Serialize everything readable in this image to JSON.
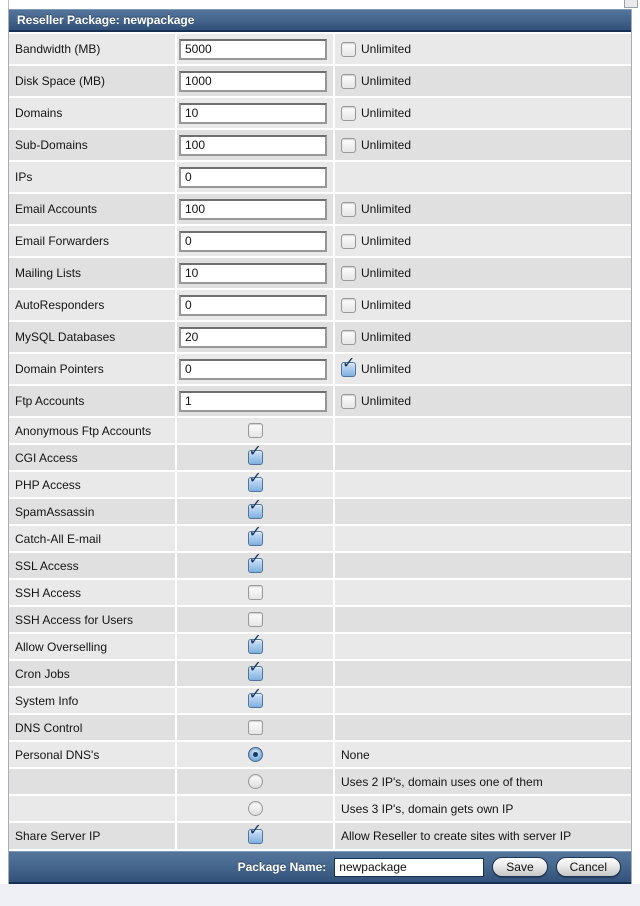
{
  "title_bar": {
    "title": "Reseller Package: newpackage"
  },
  "labels": {
    "unlimited": "Unlimited"
  },
  "limit_rows": [
    {
      "label": "Bandwidth (MB)",
      "value": "5000",
      "has_unlimited": true,
      "unlimited_checked": false
    },
    {
      "label": "Disk Space (MB)",
      "value": "1000",
      "has_unlimited": true,
      "unlimited_checked": false
    },
    {
      "label": "Domains",
      "value": "10",
      "has_unlimited": true,
      "unlimited_checked": false
    },
    {
      "label": "Sub-Domains",
      "value": "100",
      "has_unlimited": true,
      "unlimited_checked": false
    },
    {
      "label": "IPs",
      "value": "0",
      "has_unlimited": false,
      "unlimited_checked": false
    },
    {
      "label": "Email Accounts",
      "value": "100",
      "has_unlimited": true,
      "unlimited_checked": false
    },
    {
      "label": "Email Forwarders",
      "value": "0",
      "has_unlimited": true,
      "unlimited_checked": false
    },
    {
      "label": "Mailing Lists",
      "value": "10",
      "has_unlimited": true,
      "unlimited_checked": false
    },
    {
      "label": "AutoResponders",
      "value": "0",
      "has_unlimited": true,
      "unlimited_checked": false
    },
    {
      "label": "MySQL Databases",
      "value": "20",
      "has_unlimited": true,
      "unlimited_checked": false
    },
    {
      "label": "Domain Pointers",
      "value": "0",
      "has_unlimited": true,
      "unlimited_checked": true
    },
    {
      "label": "Ftp Accounts",
      "value": "1",
      "has_unlimited": true,
      "unlimited_checked": false
    }
  ],
  "feature_rows": [
    {
      "label": "Anonymous Ftp Accounts",
      "checked": false
    },
    {
      "label": "CGI Access",
      "checked": true
    },
    {
      "label": "PHP Access",
      "checked": true
    },
    {
      "label": "SpamAssassin",
      "checked": true
    },
    {
      "label": "Catch-All E-mail",
      "checked": true
    },
    {
      "label": "SSL Access",
      "checked": true
    },
    {
      "label": "SSH Access",
      "checked": false
    },
    {
      "label": "SSH Access for Users",
      "checked": false
    },
    {
      "label": "Allow Overselling",
      "checked": true
    },
    {
      "label": "Cron Jobs",
      "checked": true
    },
    {
      "label": "System Info",
      "checked": true
    },
    {
      "label": "DNS Control",
      "checked": false
    }
  ],
  "personal_dns": {
    "label": "Personal DNS's",
    "options": [
      {
        "label": "None",
        "selected": true
      },
      {
        "label": "Uses 2 IP's, domain uses one of them",
        "selected": false
      },
      {
        "label": "Uses 3 IP's, domain gets own IP",
        "selected": false
      }
    ]
  },
  "share_server_ip": {
    "label": "Share Server IP",
    "checked": true,
    "note": "Allow Reseller to create sites with server IP"
  },
  "footer": {
    "package_name_label": "Package Name:",
    "package_name_value": "newpackage",
    "save_label": "Save",
    "cancel_label": "Cancel"
  },
  "colors": {
    "header_blue_top": "#54749c",
    "header_blue_bottom": "#33517a",
    "checked_blue": "#7fb0e0",
    "row_light": "#e9e9e9",
    "row_dark": "#e0e0e0"
  }
}
